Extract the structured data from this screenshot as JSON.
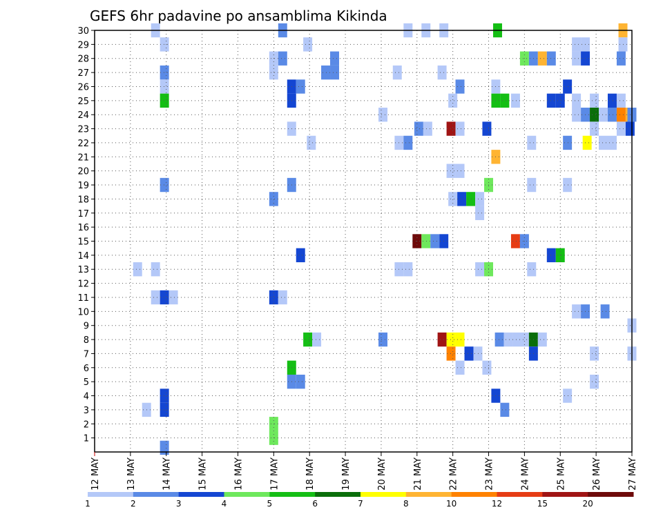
{
  "chart_data": {
    "type": "heatmap",
    "title": "GEFS 6hr padavine po ansamblima Kikinda",
    "x_tick_labels": [
      "12 MAY",
      "13 MAY",
      "14 MAY",
      "15 MAY",
      "16 MAY",
      "17 MAY",
      "18 MAY",
      "19 MAY",
      "20 MAY",
      "21 MAY",
      "22 MAY",
      "23 MAY",
      "24 MAY",
      "25 MAY",
      "26 MAY",
      "27 MAY"
    ],
    "y_tick_labels": [
      "1",
      "2",
      "3",
      "4",
      "5",
      "6",
      "7",
      "8",
      "9",
      "10",
      "11",
      "12",
      "13",
      "14",
      "15",
      "16",
      "17",
      "18",
      "19",
      "20",
      "21",
      "22",
      "23",
      "24",
      "25",
      "26",
      "27",
      "28",
      "29",
      "30"
    ],
    "xlim": [
      0,
      15
    ],
    "ylim": [
      0,
      30
    ],
    "grid": true,
    "colorbar": {
      "labels": [
        "1",
        "2",
        "3",
        "4",
        "5",
        "6",
        "7",
        "8",
        "10",
        "12",
        "15",
        "20"
      ],
      "colors": [
        "#b4c8f8",
        "#5a8ae6",
        "#1446d2",
        "#6ee85c",
        "#14be14",
        "#0a6e0a",
        "#ffff00",
        "#ffb432",
        "#ff8200",
        "#e63c14",
        "#a01414",
        "#6e0a0a"
      ]
    },
    "cells": [
      [
        1.7,
        30,
        1
      ],
      [
        5.25,
        30,
        2
      ],
      [
        8.75,
        30,
        1
      ],
      [
        9.25,
        30,
        1
      ],
      [
        9.75,
        30,
        1
      ],
      [
        11.25,
        30,
        5
      ],
      [
        14.75,
        30,
        8
      ],
      [
        1.95,
        29,
        1
      ],
      [
        5.95,
        29,
        1
      ],
      [
        13.45,
        29,
        1
      ],
      [
        13.7,
        29,
        1
      ],
      [
        14.75,
        29,
        1
      ],
      [
        5.0,
        28,
        1
      ],
      [
        5.25,
        28,
        2
      ],
      [
        6.7,
        28,
        2
      ],
      [
        12.0,
        28,
        4
      ],
      [
        12.25,
        28,
        2
      ],
      [
        12.5,
        28,
        8
      ],
      [
        12.75,
        28,
        2
      ],
      [
        13.45,
        28,
        1
      ],
      [
        13.7,
        28,
        3
      ],
      [
        14.7,
        28,
        2
      ],
      [
        1.95,
        27,
        2
      ],
      [
        5.0,
        27,
        1
      ],
      [
        6.45,
        27,
        2
      ],
      [
        6.7,
        27,
        2
      ],
      [
        8.45,
        27,
        1
      ],
      [
        9.7,
        27,
        1
      ],
      [
        1.95,
        26,
        1
      ],
      [
        5.5,
        26,
        3
      ],
      [
        5.75,
        26,
        2
      ],
      [
        10.2,
        26,
        2
      ],
      [
        11.2,
        26,
        1
      ],
      [
        13.2,
        26,
        3
      ],
      [
        1.95,
        25,
        5
      ],
      [
        5.5,
        25,
        3
      ],
      [
        10.0,
        25,
        1
      ],
      [
        11.2,
        25,
        5
      ],
      [
        11.45,
        25,
        5
      ],
      [
        11.75,
        25,
        1
      ],
      [
        12.75,
        25,
        3
      ],
      [
        13.0,
        25,
        3
      ],
      [
        13.45,
        25,
        1
      ],
      [
        13.95,
        25,
        1
      ],
      [
        14.45,
        25,
        3
      ],
      [
        14.7,
        25,
        1
      ],
      [
        8.05,
        24,
        1
      ],
      [
        13.45,
        24,
        1
      ],
      [
        13.7,
        24,
        2
      ],
      [
        13.95,
        24,
        6
      ],
      [
        14.2,
        24,
        1
      ],
      [
        14.45,
        24,
        2
      ],
      [
        14.7,
        24,
        9
      ],
      [
        14.95,
        24,
        8
      ],
      [
        15.0,
        24,
        2
      ],
      [
        5.5,
        23,
        1
      ],
      [
        9.05,
        23,
        2
      ],
      [
        9.3,
        23,
        1
      ],
      [
        9.95,
        23,
        11
      ],
      [
        10.2,
        23,
        1
      ],
      [
        10.95,
        23,
        3
      ],
      [
        13.95,
        23,
        1
      ],
      [
        14.7,
        23,
        1
      ],
      [
        14.95,
        23,
        3
      ],
      [
        6.05,
        22,
        1
      ],
      [
        8.5,
        22,
        1
      ],
      [
        8.75,
        22,
        2
      ],
      [
        12.2,
        22,
        1
      ],
      [
        13.2,
        22,
        2
      ],
      [
        13.75,
        22,
        7
      ],
      [
        14.2,
        22,
        1
      ],
      [
        14.45,
        22,
        1
      ],
      [
        11.2,
        21,
        8
      ],
      [
        9.95,
        20,
        1
      ],
      [
        10.2,
        20,
        1
      ],
      [
        1.95,
        19,
        2
      ],
      [
        5.5,
        19,
        2
      ],
      [
        11.0,
        19,
        4
      ],
      [
        12.2,
        19,
        1
      ],
      [
        13.2,
        19,
        1
      ],
      [
        5.0,
        18,
        2
      ],
      [
        10.0,
        18,
        1
      ],
      [
        10.25,
        18,
        3
      ],
      [
        10.5,
        18,
        5
      ],
      [
        10.75,
        18,
        1
      ],
      [
        10.75,
        17,
        1
      ],
      [
        9.0,
        15,
        12
      ],
      [
        9.25,
        15,
        4
      ],
      [
        9.5,
        15,
        2
      ],
      [
        9.75,
        15,
        3
      ],
      [
        11.75,
        15,
        10
      ],
      [
        12.0,
        15,
        2
      ],
      [
        5.75,
        14,
        3
      ],
      [
        12.75,
        14,
        3
      ],
      [
        13.0,
        14,
        5
      ],
      [
        1.2,
        13,
        1
      ],
      [
        1.7,
        13,
        1
      ],
      [
        8.5,
        13,
        1
      ],
      [
        8.75,
        13,
        1
      ],
      [
        10.75,
        13,
        1
      ],
      [
        11.0,
        13,
        4
      ],
      [
        12.2,
        13,
        1
      ],
      [
        1.7,
        11,
        1
      ],
      [
        1.95,
        11,
        3
      ],
      [
        2.2,
        11,
        1
      ],
      [
        5.0,
        11,
        3
      ],
      [
        5.25,
        11,
        1
      ],
      [
        13.45,
        10,
        1
      ],
      [
        13.7,
        10,
        2
      ],
      [
        14.25,
        10,
        2
      ],
      [
        15.0,
        9,
        1
      ],
      [
        5.95,
        8,
        5
      ],
      [
        6.2,
        8,
        1
      ],
      [
        8.05,
        8,
        2
      ],
      [
        9.7,
        8,
        11
      ],
      [
        9.95,
        8,
        7
      ],
      [
        10.2,
        8,
        7
      ],
      [
        11.3,
        8,
        2
      ],
      [
        11.55,
        8,
        1
      ],
      [
        11.8,
        8,
        1
      ],
      [
        12.05,
        8,
        1
      ],
      [
        12.25,
        8,
        6
      ],
      [
        12.5,
        8,
        1
      ],
      [
        9.95,
        7,
        9
      ],
      [
        10.45,
        7,
        3
      ],
      [
        10.7,
        7,
        1
      ],
      [
        12.25,
        7,
        3
      ],
      [
        13.95,
        7,
        1
      ],
      [
        15.0,
        7,
        1
      ],
      [
        5.5,
        6,
        5
      ],
      [
        10.2,
        6,
        1
      ],
      [
        10.95,
        6,
        1
      ],
      [
        5.5,
        5,
        2
      ],
      [
        5.75,
        5,
        2
      ],
      [
        13.95,
        5,
        1
      ],
      [
        1.95,
        4,
        3
      ],
      [
        11.2,
        4,
        3
      ],
      [
        13.2,
        4,
        1
      ],
      [
        1.45,
        3,
        1
      ],
      [
        1.95,
        3,
        3
      ],
      [
        11.45,
        3,
        2
      ],
      [
        5.0,
        2,
        4
      ],
      [
        5.0,
        1,
        4
      ],
      [
        1.95,
        0.3,
        2
      ]
    ]
  }
}
